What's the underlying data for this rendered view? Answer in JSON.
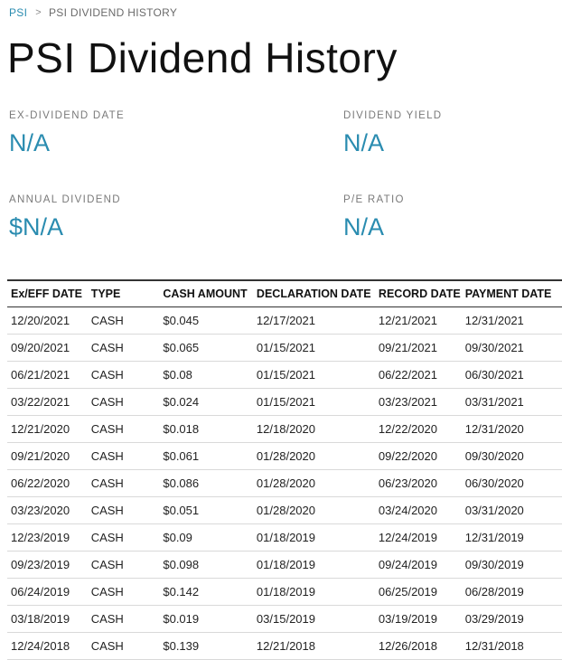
{
  "breadcrumb": {
    "root": "PSI",
    "separator": ">",
    "current": "PSI DIVIDEND HISTORY"
  },
  "page_title": "PSI Dividend History",
  "stats": {
    "ex_dividend_date": {
      "label": "EX-DIVIDEND DATE",
      "value": "N/A"
    },
    "dividend_yield": {
      "label": "DIVIDEND YIELD",
      "value": "N/A"
    },
    "annual_dividend": {
      "label": "ANNUAL DIVIDEND",
      "value": "$N/A"
    },
    "pe_ratio": {
      "label": "P/E RATIO",
      "value": "N/A"
    }
  },
  "colors": {
    "accent": "#2a8cb0",
    "label": "#7a7a7a",
    "text": "#1a1a1a"
  },
  "table": {
    "headers": [
      "Ex/EFF DATE",
      "TYPE",
      "CASH AMOUNT",
      "DECLARATION DATE",
      "RECORD DATE",
      "PAYMENT DATE"
    ],
    "rows": [
      [
        "12/20/2021",
        "CASH",
        "$0.045",
        "12/17/2021",
        "12/21/2021",
        "12/31/2021"
      ],
      [
        "09/20/2021",
        "CASH",
        "$0.065",
        "01/15/2021",
        "09/21/2021",
        "09/30/2021"
      ],
      [
        "06/21/2021",
        "CASH",
        "$0.08",
        "01/15/2021",
        "06/22/2021",
        "06/30/2021"
      ],
      [
        "03/22/2021",
        "CASH",
        "$0.024",
        "01/15/2021",
        "03/23/2021",
        "03/31/2021"
      ],
      [
        "12/21/2020",
        "CASH",
        "$0.018",
        "12/18/2020",
        "12/22/2020",
        "12/31/2020"
      ],
      [
        "09/21/2020",
        "CASH",
        "$0.061",
        "01/28/2020",
        "09/22/2020",
        "09/30/2020"
      ],
      [
        "06/22/2020",
        "CASH",
        "$0.086",
        "01/28/2020",
        "06/23/2020",
        "06/30/2020"
      ],
      [
        "03/23/2020",
        "CASH",
        "$0.051",
        "01/28/2020",
        "03/24/2020",
        "03/31/2020"
      ],
      [
        "12/23/2019",
        "CASH",
        "$0.09",
        "01/18/2019",
        "12/24/2019",
        "12/31/2019"
      ],
      [
        "09/23/2019",
        "CASH",
        "$0.098",
        "01/18/2019",
        "09/24/2019",
        "09/30/2019"
      ],
      [
        "06/24/2019",
        "CASH",
        "$0.142",
        "01/18/2019",
        "06/25/2019",
        "06/28/2019"
      ],
      [
        "03/18/2019",
        "CASH",
        "$0.019",
        "03/15/2019",
        "03/19/2019",
        "03/29/2019"
      ],
      [
        "12/24/2018",
        "CASH",
        "$0.139",
        "12/21/2018",
        "12/26/2018",
        "12/31/2018"
      ]
    ]
  }
}
